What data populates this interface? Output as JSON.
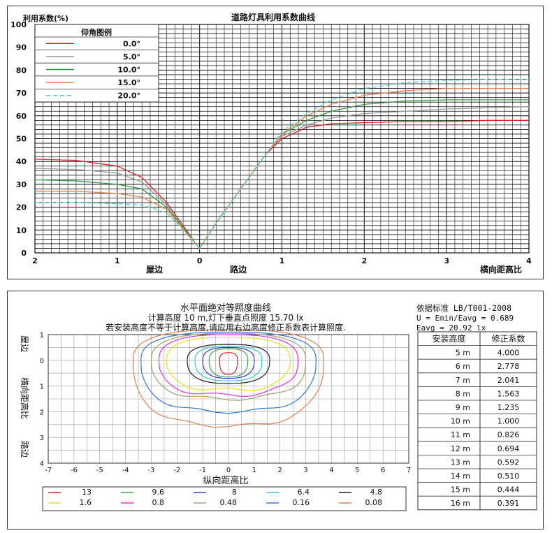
{
  "chart_data": [
    {
      "type": "line",
      "title": "道路灯具利用系数曲线",
      "ylabel": "利用系数(%)",
      "xlabel": "横向距高比",
      "x_side_left": "屋边",
      "x_side_center": "路边",
      "xlim": [
        -2,
        4
      ],
      "ylim": [
        0,
        100
      ],
      "x_ticks": [
        {
          "v": -2,
          "label": "2"
        },
        {
          "v": -1,
          "label": "1"
        },
        {
          "v": 0,
          "label": "0"
        },
        {
          "v": 1,
          "label": "1"
        },
        {
          "v": 2,
          "label": "2"
        },
        {
          "v": 3,
          "label": "3"
        },
        {
          "v": 4,
          "label": "4"
        }
      ],
      "y_ticks": [
        0,
        10,
        20,
        30,
        40,
        50,
        60,
        70,
        80,
        90,
        100
      ],
      "grid": true,
      "legend": {
        "title": "仰角图例",
        "position": "top-left"
      },
      "series": [
        {
          "name": "0.0°",
          "color": "#d92020",
          "dash": "",
          "x": [
            -2,
            -1.5,
            -1.0,
            -0.7,
            -0.4,
            -0.2,
            -0.05,
            0,
            0.2,
            0.5,
            0.8,
            1.0,
            1.3,
            1.6,
            2.0,
            2.5,
            3.0,
            3.5,
            4.0
          ],
          "y": [
            41,
            40.5,
            38,
            33,
            22,
            12,
            4,
            2,
            13,
            28,
            43,
            50,
            55,
            56.5,
            57,
            57.5,
            57.5,
            58,
            58
          ]
        },
        {
          "name": "5.0°",
          "color": "#999999",
          "dash": "",
          "x": [
            -2,
            -1.5,
            -1.0,
            -0.7,
            -0.4,
            -0.2,
            -0.05,
            0,
            0.2,
            0.5,
            0.8,
            1.0,
            1.3,
            1.6,
            2.0,
            2.5,
            3.0,
            3.5,
            4.0
          ],
          "y": [
            37,
            36.5,
            35,
            31,
            21,
            11,
            4,
            2,
            13,
            28,
            43,
            51,
            56,
            59,
            61,
            62,
            63,
            63.5,
            64
          ]
        },
        {
          "name": "10.0°",
          "color": "#2a9a3a",
          "dash": "",
          "x": [
            -2,
            -1.5,
            -1.0,
            -0.7,
            -0.4,
            -0.2,
            -0.05,
            0,
            0.2,
            0.5,
            0.8,
            1.0,
            1.3,
            1.6,
            2.0,
            2.5,
            3.0,
            3.5,
            4.0
          ],
          "y": [
            32,
            31.5,
            30,
            28,
            20,
            11,
            4,
            2,
            13,
            28,
            43,
            52,
            58,
            62,
            65,
            66.5,
            67,
            67,
            67
          ]
        },
        {
          "name": "15.0°",
          "color": "#e08050",
          "dash": "",
          "x": [
            -2,
            -1.5,
            -1.0,
            -0.7,
            -0.4,
            -0.2,
            -0.05,
            0,
            0.2,
            0.5,
            0.8,
            1.0,
            1.3,
            1.6,
            2.0,
            2.5,
            3.0,
            3.5,
            4.0
          ],
          "y": [
            27,
            27,
            26,
            24.5,
            19,
            10.5,
            4,
            2,
            13,
            28,
            43,
            52,
            60,
            65,
            69,
            71,
            72,
            72,
            72
          ]
        },
        {
          "name": "20.0°",
          "color": "#40d8c8",
          "dash": "6,4",
          "x": [
            -2,
            -1.5,
            -1.0,
            -0.7,
            -0.4,
            -0.2,
            -0.05,
            0,
            0.2,
            0.5,
            0.8,
            1.0,
            1.3,
            1.6,
            2.0,
            2.5,
            3.0,
            3.5,
            4.0
          ],
          "y": [
            22,
            22,
            21.5,
            21,
            17.5,
            10,
            4,
            2,
            13,
            28,
            43,
            53,
            61,
            67,
            72,
            74.5,
            75.5,
            76,
            76
          ]
        }
      ]
    },
    {
      "type": "contour",
      "title": "水平面绝对等照度曲线",
      "subtitle_line1_prefix": "计算高度 10 m,灯下垂直点照度  15.70 lx",
      "subtitle_line2": "若安装高度不等于计算高度,请应用右边高度修正系数表计算照度.",
      "xlabel": "纵向距高比",
      "ylabel": "横向距高比",
      "y_side_top": "屋边",
      "y_side_bottom": "路边",
      "xlim": [
        -7,
        7
      ],
      "ylim": [
        -1,
        4
      ],
      "x_ticks": [
        -7,
        -6,
        -5,
        -4,
        -3,
        -2,
        -1,
        0,
        1,
        2,
        3,
        4,
        5,
        6,
        7
      ],
      "y_ticks": [
        {
          "v": -1,
          "label": "1"
        },
        {
          "v": 0,
          "label": "0"
        },
        {
          "v": 1,
          "label": "1"
        },
        {
          "v": 2,
          "label": "2"
        },
        {
          "v": 3,
          "label": "3"
        },
        {
          "v": 4,
          "label": "4"
        }
      ],
      "grid": true,
      "levels": [
        {
          "value": "13",
          "color": "#d02828",
          "hw": 0.35,
          "top": 0.3,
          "bot": 0.55
        },
        {
          "value": "9.6",
          "color": "#3aa84a",
          "hw": 0.75,
          "top": 0.45,
          "bot": 0.65
        },
        {
          "value": "8",
          "color": "#3838d0",
          "hw": 1.0,
          "top": 0.5,
          "bot": 0.7
        },
        {
          "value": "6.4",
          "color": "#30c8d8",
          "hw": 1.3,
          "top": 0.55,
          "bot": 0.8
        },
        {
          "value": "4.8",
          "color": "#222222",
          "hw": 1.6,
          "top": 0.62,
          "bot": 0.9
        },
        {
          "value": "1.6",
          "color": "#e8e020",
          "hw": 2.4,
          "top": 0.9,
          "bot": 1.15
        },
        {
          "value": "0.8",
          "color": "#e030e0",
          "hw": 2.7,
          "top": 1.0,
          "bot": 1.35
        },
        {
          "value": "0.48",
          "color": "#a0a070",
          "hw": 3.0,
          "top": 1.05,
          "bot": 1.5
        },
        {
          "value": "0.16",
          "color": "#2a7ad8",
          "hw": 3.4,
          "top": 1.1,
          "bot": 2.0
        },
        {
          "value": "0.08",
          "color": "#e08050",
          "hw": 3.7,
          "top": 1.2,
          "bot": 2.55
        }
      ]
    }
  ],
  "standard": {
    "line1": "依据标准 LB/T001-2008",
    "line2": "U = Emin/Eavg = 0.689",
    "line3": "Eavg = 20.92 lx"
  },
  "correction_table": {
    "headers": [
      "安装高度",
      "修正系数"
    ],
    "rows": [
      [
        "5 m",
        "4.000"
      ],
      [
        "6 m",
        "2.778"
      ],
      [
        "7 m",
        "2.041"
      ],
      [
        "8 m",
        "1.563"
      ],
      [
        "9 m",
        "1.235"
      ],
      [
        "10 m",
        "1.000"
      ],
      [
        "11 m",
        "0.826"
      ],
      [
        "12 m",
        "0.694"
      ],
      [
        "13 m",
        "0.592"
      ],
      [
        "14 m",
        "0.510"
      ],
      [
        "15 m",
        "0.444"
      ],
      [
        "16 m",
        "0.391"
      ]
    ]
  }
}
